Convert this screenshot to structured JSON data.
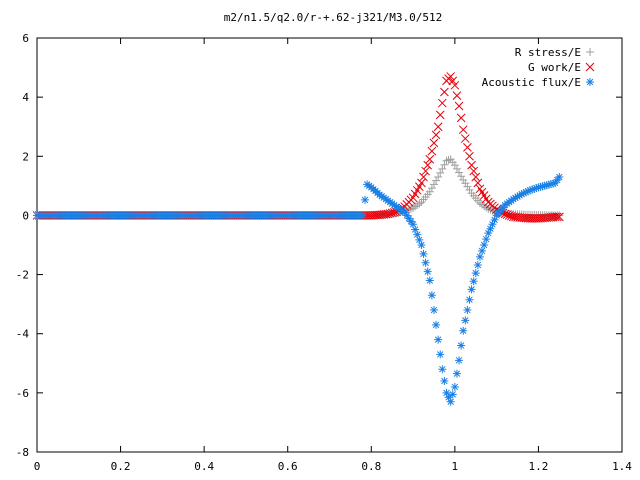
{
  "chart_data": {
    "type": "scatter",
    "title": "m2/n1.5/q2.0/r-+.62-j321/M3.0/512",
    "xlabel": "",
    "ylabel": "",
    "xlim": [
      0,
      1.4
    ],
    "ylim": [
      -8,
      6
    ],
    "x_ticks": [
      {
        "value": 0,
        "label": "0"
      },
      {
        "value": 0.2,
        "label": "0.2"
      },
      {
        "value": 0.4,
        "label": "0.4"
      },
      {
        "value": 0.6,
        "label": "0.6"
      },
      {
        "value": 0.8,
        "label": "0.8"
      },
      {
        "value": 1.0,
        "label": "1"
      },
      {
        "value": 1.2,
        "label": "1.2"
      },
      {
        "value": 1.4,
        "label": "1.4"
      }
    ],
    "y_ticks": [
      {
        "value": 6,
        "label": "6"
      },
      {
        "value": 4,
        "label": "4"
      },
      {
        "value": 2,
        "label": "2"
      },
      {
        "value": 0,
        "label": "0"
      },
      {
        "value": -2,
        "label": "-2"
      },
      {
        "value": -4,
        "label": "-4"
      },
      {
        "value": -6,
        "label": "-6"
      },
      {
        "value": -8,
        "label": "-8"
      }
    ],
    "legend": "top-right",
    "grid": false,
    "series": [
      {
        "name": "R stress/E",
        "color": "#a0a0a0",
        "marker": "plus",
        "points": [
          [
            0.0,
            0.0
          ],
          [
            0.2,
            0.0
          ],
          [
            0.4,
            0.0
          ],
          [
            0.6,
            0.0
          ],
          [
            0.79,
            0.0
          ],
          [
            0.8,
            0.0
          ],
          [
            0.82,
            0.02
          ],
          [
            0.84,
            0.04
          ],
          [
            0.86,
            0.08
          ],
          [
            0.88,
            0.14
          ],
          [
            0.9,
            0.25
          ],
          [
            0.92,
            0.45
          ],
          [
            0.94,
            0.8
          ],
          [
            0.96,
            1.3
          ],
          [
            0.98,
            1.85
          ],
          [
            0.99,
            1.9
          ],
          [
            1.0,
            1.7
          ],
          [
            1.02,
            1.2
          ],
          [
            1.04,
            0.75
          ],
          [
            1.06,
            0.42
          ],
          [
            1.08,
            0.22
          ],
          [
            1.1,
            0.12
          ],
          [
            1.12,
            0.06
          ],
          [
            1.14,
            0.04
          ],
          [
            1.16,
            0.03
          ],
          [
            1.18,
            0.02
          ],
          [
            1.2,
            0.01
          ],
          [
            1.22,
            0.0
          ],
          [
            1.25,
            0.0
          ]
        ]
      },
      {
        "name": "G work/E",
        "color": "#e8000b",
        "marker": "cross",
        "points": [
          [
            0.0,
            0.0
          ],
          [
            0.2,
            0.0
          ],
          [
            0.4,
            0.0
          ],
          [
            0.6,
            0.0
          ],
          [
            0.79,
            0.0
          ],
          [
            0.8,
            0.0
          ],
          [
            0.82,
            0.02
          ],
          [
            0.84,
            0.05
          ],
          [
            0.86,
            0.12
          ],
          [
            0.88,
            0.3
          ],
          [
            0.9,
            0.6
          ],
          [
            0.92,
            1.1
          ],
          [
            0.94,
            1.9
          ],
          [
            0.96,
            3.0
          ],
          [
            0.97,
            3.8
          ],
          [
            0.98,
            4.55
          ],
          [
            0.99,
            4.7
          ],
          [
            1.0,
            4.4
          ],
          [
            1.01,
            3.7
          ],
          [
            1.02,
            2.9
          ],
          [
            1.04,
            1.7
          ],
          [
            1.06,
            0.9
          ],
          [
            1.08,
            0.45
          ],
          [
            1.1,
            0.2
          ],
          [
            1.12,
            0.05
          ],
          [
            1.14,
            -0.05
          ],
          [
            1.16,
            -0.08
          ],
          [
            1.18,
            -0.1
          ],
          [
            1.2,
            -0.1
          ],
          [
            1.22,
            -0.08
          ],
          [
            1.24,
            -0.05
          ],
          [
            1.25,
            -0.05
          ]
        ]
      },
      {
        "name": "Acoustic flux/E",
        "color": "#1a80e6",
        "marker": "star",
        "points": [
          [
            0.0,
            0.0
          ],
          [
            0.2,
            0.0
          ],
          [
            0.4,
            0.0
          ],
          [
            0.6,
            0.0
          ],
          [
            0.78,
            0.0
          ],
          [
            0.79,
            1.05
          ],
          [
            0.8,
            0.95
          ],
          [
            0.82,
            0.7
          ],
          [
            0.84,
            0.5
          ],
          [
            0.86,
            0.3
          ],
          [
            0.88,
            0.1
          ],
          [
            0.9,
            -0.3
          ],
          [
            0.92,
            -1.0
          ],
          [
            0.94,
            -2.2
          ],
          [
            0.95,
            -3.2
          ],
          [
            0.96,
            -4.2
          ],
          [
            0.97,
            -5.2
          ],
          [
            0.98,
            -6.0
          ],
          [
            0.99,
            -6.3
          ],
          [
            1.0,
            -5.8
          ],
          [
            1.01,
            -4.9
          ],
          [
            1.02,
            -3.9
          ],
          [
            1.04,
            -2.5
          ],
          [
            1.06,
            -1.4
          ],
          [
            1.08,
            -0.6
          ],
          [
            1.1,
            0.0
          ],
          [
            1.12,
            0.35
          ],
          [
            1.14,
            0.55
          ],
          [
            1.16,
            0.72
          ],
          [
            1.18,
            0.85
          ],
          [
            1.2,
            0.95
          ],
          [
            1.22,
            1.02
          ],
          [
            1.24,
            1.1
          ],
          [
            1.25,
            1.3
          ]
        ]
      }
    ]
  }
}
